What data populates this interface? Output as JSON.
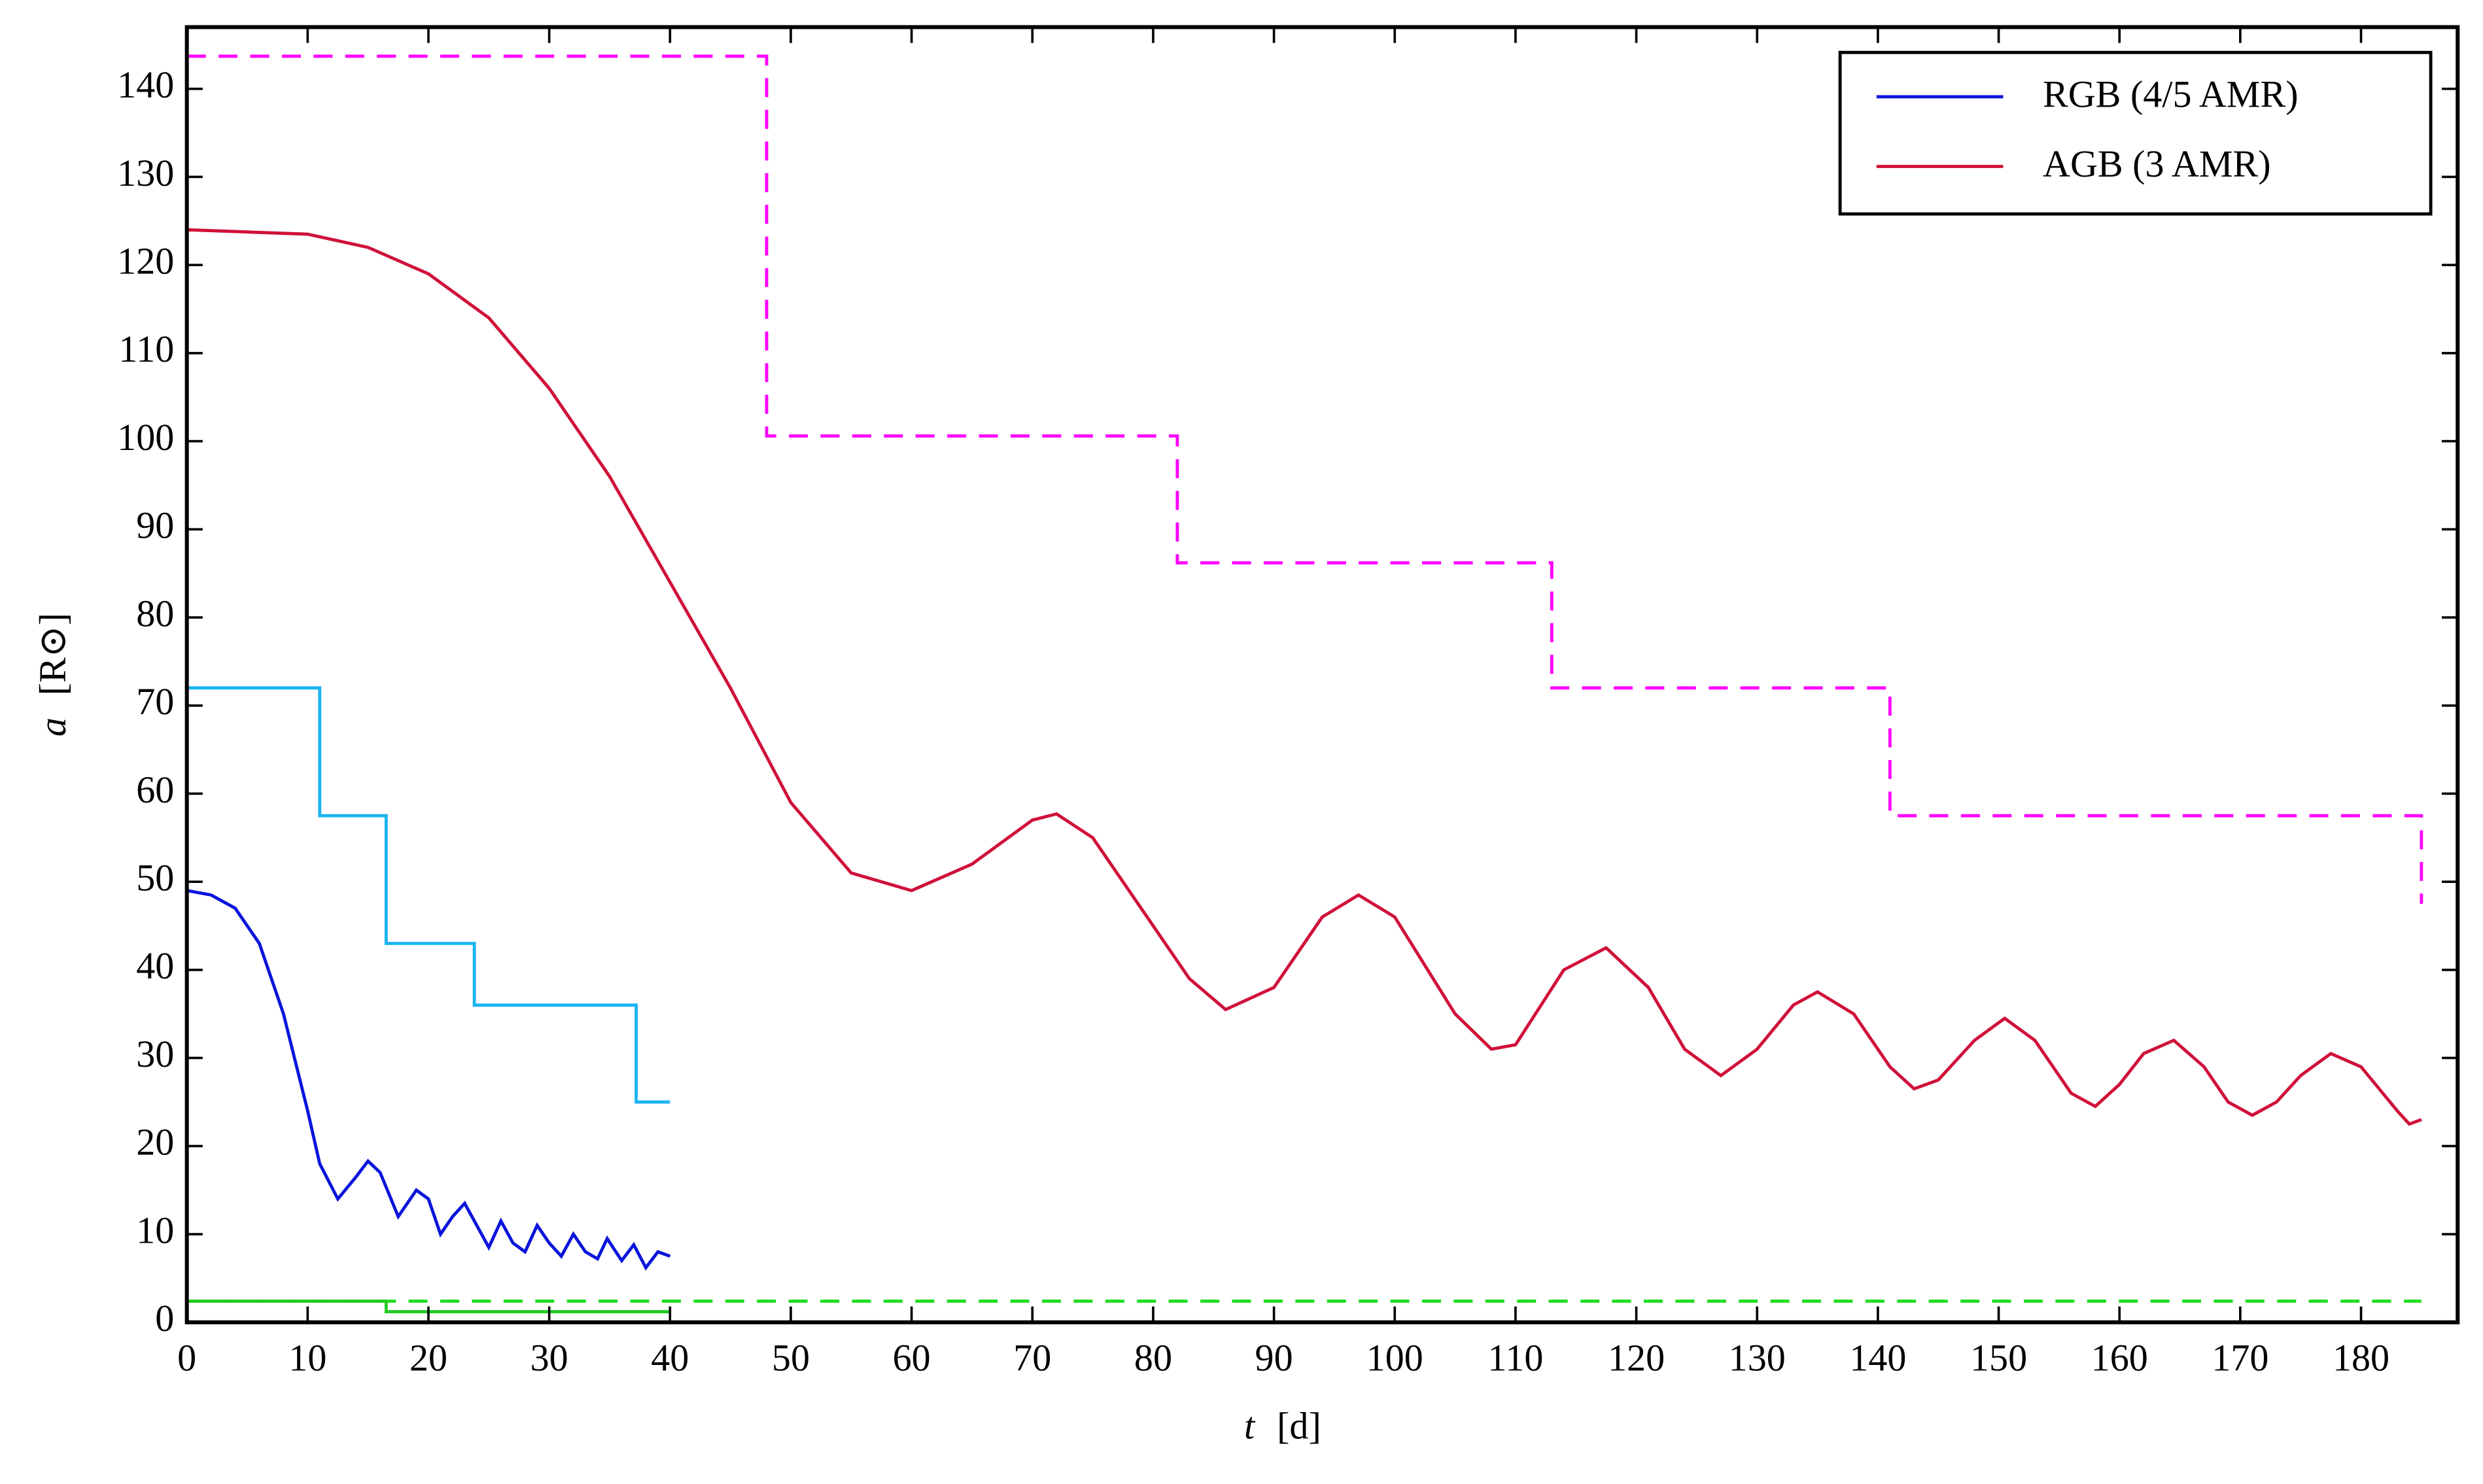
{
  "chart_data": {
    "type": "line",
    "xlabel": "t",
    "xlabel_unit": "[d]",
    "ylabel": "a",
    "ylabel_unit": "[R⊙]",
    "xlim": [
      0,
      188
    ],
    "ylim": [
      0,
      147
    ],
    "xticks": [
      0,
      10,
      20,
      30,
      40,
      50,
      60,
      70,
      80,
      90,
      100,
      110,
      120,
      130,
      140,
      150,
      160,
      170,
      180
    ],
    "yticks": [
      0,
      10,
      20,
      30,
      40,
      50,
      60,
      70,
      80,
      90,
      100,
      110,
      120,
      130,
      140
    ],
    "legend": "upper right",
    "series": [
      {
        "name": "RGB (4/5 AMR)",
        "color": "#0a14dc",
        "dash": false,
        "x": [
          0,
          2,
          4,
          6,
          8,
          10,
          11,
          12.5,
          14,
          15,
          16,
          17.5,
          19,
          20,
          21,
          22,
          23,
          24,
          25,
          26,
          27,
          28,
          29,
          30,
          31,
          32,
          33,
          34,
          34.8,
          36,
          37,
          38,
          39,
          40
        ],
        "values": [
          49,
          48.5,
          47,
          43,
          35,
          24,
          18,
          14,
          16.5,
          18.3,
          17,
          12,
          15,
          14,
          10,
          12,
          13.5,
          11,
          8.5,
          11.5,
          9,
          8,
          11,
          9,
          7.5,
          10,
          8,
          7.2,
          9.5,
          7,
          8.8,
          6.2,
          8,
          7.5
        ]
      },
      {
        "name": "AGB (3 AMR)",
        "color": "#d0103a",
        "dash": false,
        "x": [
          0,
          10,
          15,
          20,
          25,
          30,
          35,
          40,
          45,
          50,
          55,
          60,
          65,
          70,
          72,
          75,
          80,
          83,
          86,
          90,
          94,
          97,
          100,
          105,
          108,
          110,
          114,
          117.5,
          121,
          124,
          127,
          130,
          133,
          135,
          138,
          141,
          143,
          145,
          148,
          150.5,
          153,
          156,
          158,
          160,
          162,
          164.5,
          167,
          169,
          171,
          173,
          175,
          177.5,
          180,
          183,
          184,
          185
        ],
        "values": [
          124,
          123.5,
          122,
          119,
          114,
          106,
          96,
          84,
          72,
          59,
          51,
          49,
          52,
          57,
          57.7,
          55,
          45,
          39,
          35.5,
          38,
          46,
          48.5,
          46,
          35,
          31,
          31.5,
          40,
          42.5,
          38,
          31,
          28,
          31,
          36,
          37.5,
          35,
          29,
          26.5,
          27.5,
          32,
          34.5,
          32,
          26,
          24.5,
          27,
          30.5,
          32,
          29,
          25,
          23.5,
          25,
          28,
          30.5,
          29,
          24,
          22.5,
          23
        ]
      },
      {
        "color": "#1ab4f0",
        "dash": false,
        "x": [
          0,
          11,
          11,
          16.5,
          16.5,
          23.8,
          23.8,
          37.2,
          37.2,
          40
        ],
        "values": [
          72,
          72,
          57.5,
          57.5,
          43,
          43,
          36,
          36,
          25,
          25
        ]
      },
      {
        "color": "#ff00ff",
        "dash": true,
        "x": [
          0,
          48,
          48,
          82,
          82,
          113,
          113,
          141,
          141,
          185,
          185
        ],
        "values": [
          143.7,
          143.7,
          100.6,
          100.6,
          86.2,
          86.2,
          72,
          72,
          57.5,
          57.5,
          47.5
        ]
      },
      {
        "color": "#22dd22",
        "dash": true,
        "x": [
          0,
          185
        ],
        "values": [
          2.4,
          2.4
        ]
      },
      {
        "color": "#22cc22",
        "dash": false,
        "x": [
          0,
          16.5,
          16.5,
          40
        ],
        "values": [
          2.4,
          2.4,
          1.2,
          1.2
        ]
      }
    ]
  }
}
